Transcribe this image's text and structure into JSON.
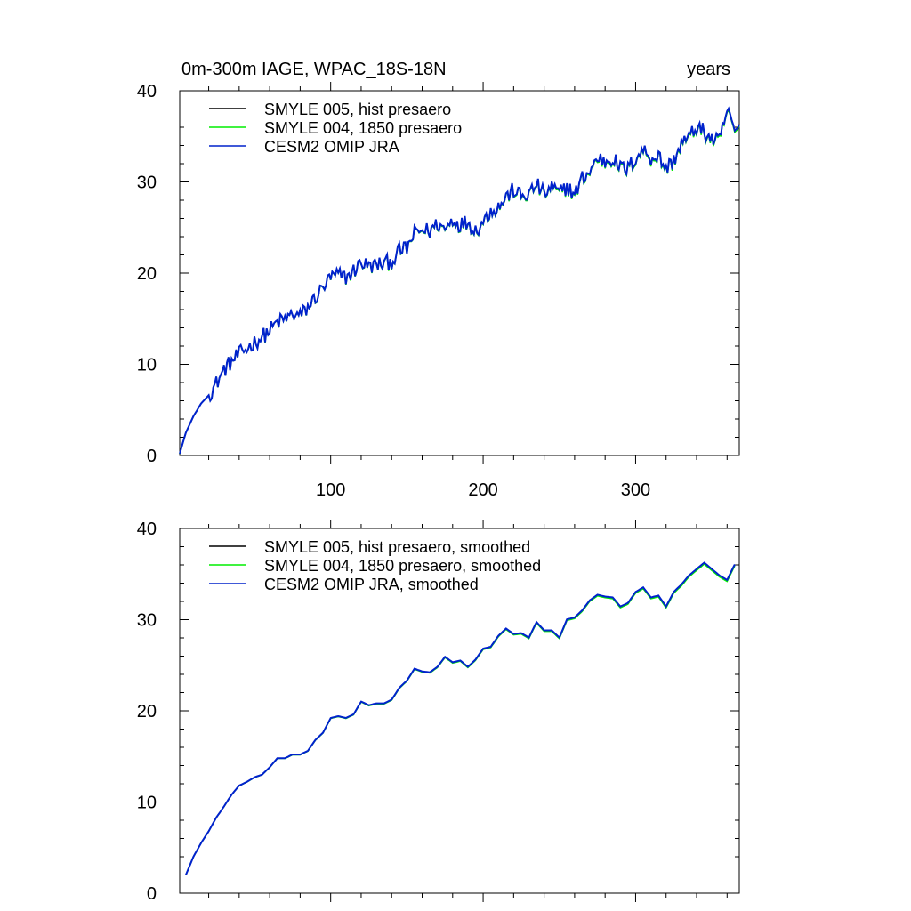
{
  "chart_data": [
    {
      "type": "line",
      "title_left": "0m-300m IAGE, WPAC_18S-18N",
      "title_right": "years",
      "xlim": [
        1,
        368
      ],
      "ylim": [
        0,
        40
      ],
      "xticks": [
        100,
        200,
        300
      ],
      "yticks": [
        0,
        10,
        20,
        30,
        40
      ],
      "xtick_labels": [
        "100",
        "200",
        "300"
      ],
      "ytick_labels": [
        "0",
        "10",
        "20",
        "30",
        "40"
      ],
      "legend_position": "top-left",
      "series": [
        {
          "name": "SMYLE 005, hist presaero",
          "color": "#000000"
        },
        {
          "name": "SMYLE 004, 1850 presaero",
          "color": "#00ee00"
        },
        {
          "name": "CESM2 OMIP JRA",
          "color": "#0022cc"
        }
      ],
      "x": [
        1,
        5,
        10,
        15,
        20,
        25,
        30,
        35,
        40,
        45,
        50,
        55,
        60,
        65,
        70,
        75,
        80,
        85,
        90,
        95,
        100,
        105,
        110,
        115,
        120,
        125,
        130,
        135,
        140,
        145,
        150,
        155,
        160,
        165,
        170,
        175,
        180,
        185,
        190,
        195,
        200,
        205,
        210,
        215,
        220,
        225,
        230,
        235,
        240,
        245,
        250,
        255,
        260,
        265,
        270,
        275,
        280,
        285,
        290,
        295,
        300,
        305,
        310,
        315,
        320,
        325,
        330,
        335,
        340,
        345,
        350,
        355,
        360,
        365,
        368
      ],
      "y": [
        0.2,
        2.5,
        4.3,
        5.7,
        6.6,
        7.9,
        9.4,
        10.3,
        11.1,
        11.7,
        12.4,
        13.0,
        13.7,
        14.6,
        14.9,
        15.5,
        15.3,
        16.2,
        17.3,
        18.4,
        19.5,
        19.8,
        19.5,
        20.2,
        21.2,
        20.7,
        20.9,
        21.0,
        21.3,
        22.4,
        22.7,
        24.3,
        24.7,
        24.6,
        25.4,
        24.8,
        25.9,
        25.3,
        25.6,
        24.7,
        25.6,
        26.9,
        27.2,
        28.3,
        29.1,
        28.4,
        28.6,
        29.7,
        28.6,
        29.4,
        28.7,
        29.5,
        28.5,
        30.4,
        31.1,
        32.6,
        32.2,
        32.6,
        31.5,
        31.4,
        32.6,
        33.5,
        32.6,
        32.8,
        31.4,
        32.3,
        34.2,
        34.8,
        36.0,
        35.4,
        34.6,
        34.4,
        37.8,
        35.6,
        35.6
      ],
      "noise": 0.9
    },
    {
      "type": "line",
      "title_left": "",
      "title_right": "",
      "xlim": [
        1,
        368
      ],
      "ylim": [
        0,
        40
      ],
      "xticks": [
        100,
        200,
        300
      ],
      "yticks": [
        0,
        10,
        20,
        30,
        40
      ],
      "xtick_labels": [],
      "ytick_labels": [
        "0",
        "10",
        "20",
        "30",
        "40"
      ],
      "legend_position": "top-left",
      "series": [
        {
          "name": "SMYLE 005, hist presaero, smoothed",
          "color": "#000000"
        },
        {
          "name": "SMYLE 004, 1850 presaero, smoothed",
          "color": "#00ee00"
        },
        {
          "name": "CESM2 OMIP JRA, smoothed",
          "color": "#0022cc"
        }
      ],
      "x": [
        5,
        10,
        15,
        20,
        25,
        30,
        35,
        40,
        45,
        50,
        55,
        60,
        65,
        70,
        75,
        80,
        85,
        90,
        95,
        100,
        105,
        110,
        115,
        120,
        125,
        130,
        135,
        140,
        145,
        150,
        155,
        160,
        165,
        170,
        175,
        180,
        185,
        190,
        195,
        200,
        205,
        210,
        215,
        220,
        225,
        230,
        235,
        240,
        245,
        250,
        255,
        260,
        265,
        270,
        275,
        280,
        285,
        290,
        295,
        300,
        305,
        310,
        315,
        320,
        325,
        330,
        335,
        340,
        345,
        350,
        355,
        360,
        365
      ],
      "y": [
        2.0,
        4.0,
        5.5,
        6.8,
        8.3,
        9.5,
        10.8,
        11.8,
        12.2,
        12.7,
        13.0,
        13.8,
        14.8,
        14.8,
        15.2,
        15.2,
        15.6,
        16.8,
        17.6,
        19.2,
        19.4,
        19.2,
        19.6,
        21.0,
        20.6,
        20.8,
        20.8,
        21.2,
        22.5,
        23.3,
        24.6,
        24.3,
        24.2,
        24.8,
        25.9,
        25.3,
        25.5,
        24.8,
        25.6,
        26.8,
        27.0,
        28.2,
        29.0,
        28.4,
        28.5,
        28.0,
        29.7,
        28.8,
        28.8,
        28.0,
        30.0,
        30.2,
        31.0,
        32.1,
        32.7,
        32.5,
        32.4,
        31.4,
        31.8,
        33.0,
        33.5,
        32.4,
        32.6,
        31.4,
        33.0,
        33.8,
        34.8,
        35.5,
        36.2,
        35.5,
        34.8,
        34.3,
        36.0
      ],
      "noise": 0.0
    }
  ]
}
